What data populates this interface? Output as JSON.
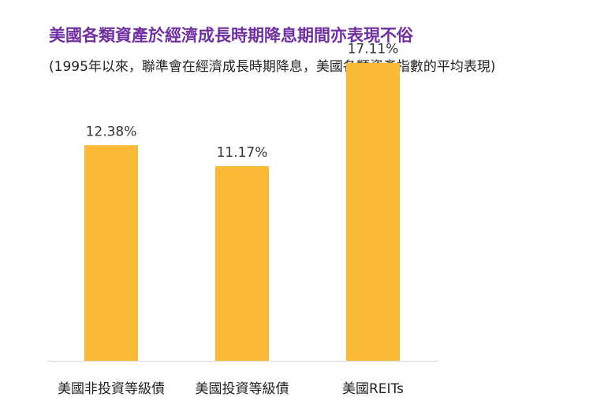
{
  "title": "美國各類資產於經濟成長時期降息期間亦表現不俗",
  "subtitle": "(1995年以來，聯準會在經濟成長時期降息，美國各類資產指數的平均表現)",
  "colors": {
    "title": "#7030a0",
    "bar": "#fbba36",
    "axis": "#d9d9d9",
    "text": "#333333"
  },
  "chart_data": {
    "type": "bar",
    "categories": [
      "美國非投資等級債",
      "美國投資等級債",
      "美國REITs"
    ],
    "values": [
      12.38,
      11.17,
      17.11
    ],
    "data_labels": [
      "12.38%",
      "11.17%",
      "17.11%"
    ],
    "title": "美國各類資產於經濟成長時期降息期間亦表現不俗",
    "subtitle": "(1995年以來，聯準會在經濟成長時期降息，美國各類資產指數的平均表現)",
    "ylim": [
      0,
      18
    ],
    "grid": false,
    "legend": "none"
  }
}
